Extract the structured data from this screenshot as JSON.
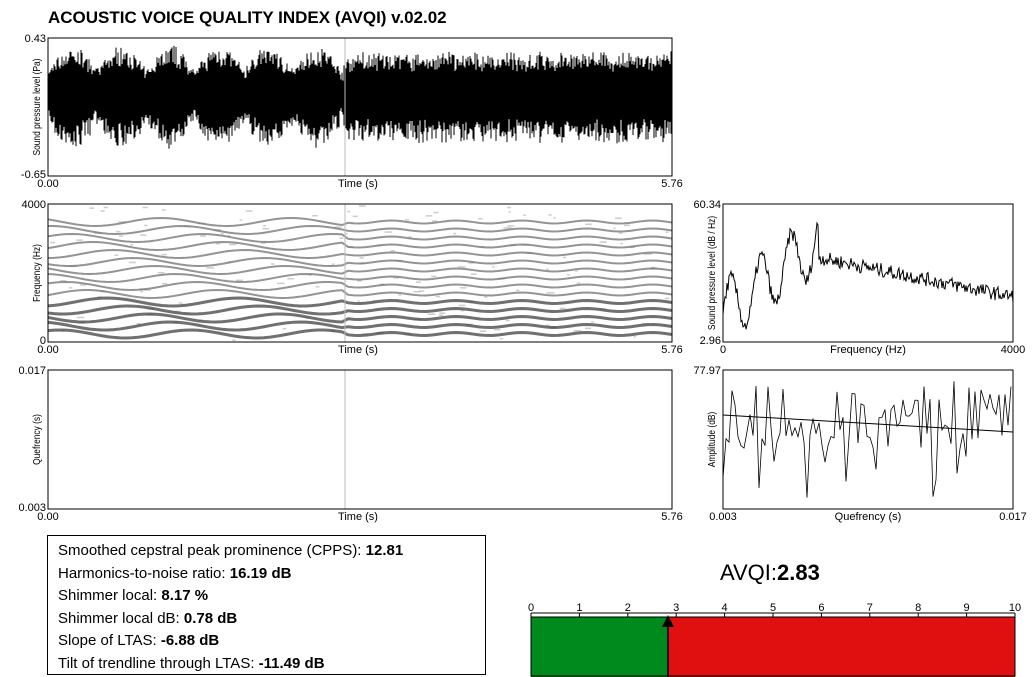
{
  "title": "ACOUSTIC VOICE QUALITY INDEX (AVQI) v.02.02",
  "panels": [
    {
      "ylabel": "Sound pressure level (Pa)",
      "ytop": "0.43",
      "ybottom": "-0.65",
      "xlabel": "Time (s)",
      "xleft": "0.00",
      "xright": "5.76"
    },
    {
      "ylabel": "Frequency (Hz)",
      "ytop": "4000",
      "ybottom": "0",
      "xlabel": "Time (s)",
      "xleft": "0.00",
      "xright": "5.76"
    },
    {
      "ylabel": "Quefrency (s)",
      "ytop": "0.017",
      "ybottom": "0.003",
      "xlabel": "Time (s)",
      "xleft": "0.00",
      "xright": "5.76"
    },
    {
      "ylabel": "Sound pressure level (dB / Hz)",
      "ytop": "60.34",
      "ybottom": "2.96",
      "xlabel": "Frequency (Hz)",
      "xleft": "0",
      "xright": "4000"
    },
    {
      "ylabel": "Amplitude (dB)",
      "ytop": "77.97",
      "ybottom": "",
      "xlabel": "Quefrency (s)",
      "xleft": "0.003",
      "xright": "0.017"
    }
  ],
  "measures": [
    {
      "label": "Smoothed cepstral peak prominence (CPPS): ",
      "value": "12.81"
    },
    {
      "label": "Harmonics-to-noise ratio: ",
      "value": "16.19 dB"
    },
    {
      "label": "Shimmer local: ",
      "value": "8.17 %"
    },
    {
      "label": "Shimmer local dB: ",
      "value": "0.78 dB"
    },
    {
      "label": "Slope of LTAS: ",
      "value": "-6.88 dB"
    },
    {
      "label": "Tilt of trendline through LTAS: ",
      "value": "-11.49 dB"
    }
  ],
  "avqi": {
    "label": "AVQI: ",
    "value": 2.83,
    "xlim": [
      0,
      10
    ],
    "xticks": [
      0,
      1,
      2,
      3,
      4,
      5,
      6,
      7,
      8,
      9,
      10
    ],
    "low_color": "#008a1e",
    "high_color": "#e01010"
  }
}
